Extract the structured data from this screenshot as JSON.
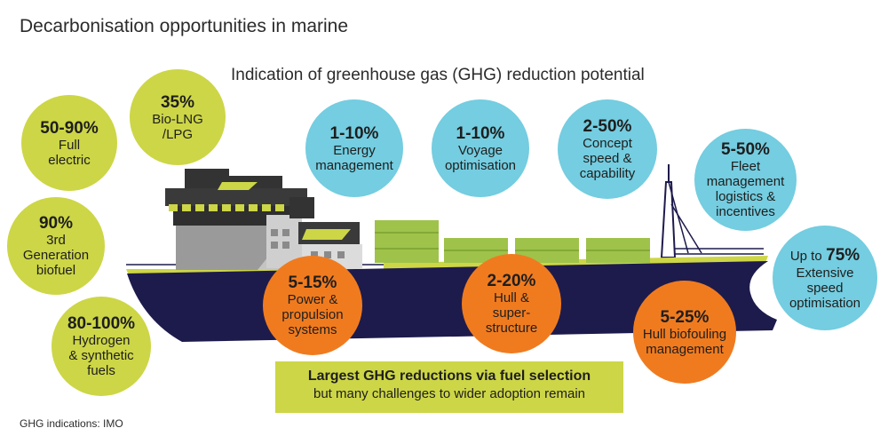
{
  "title": "Decarbonisation opportunities in marine",
  "subtitle": "Indication of greenhouse gas (GHG) reduction potential",
  "footnote": "GHG indications: IMO",
  "colors": {
    "green": "#cdd646",
    "blue": "#74cde0",
    "orange": "#f07b1f",
    "hull": "#1d1b4c"
  },
  "fuel": [
    {
      "pct": "35%",
      "label": [
        "Bio-LNG",
        "/LPG"
      ]
    },
    {
      "pct": "50-90%",
      "label": [
        "Full",
        "electric"
      ]
    },
    {
      "pct": "90%",
      "label": [
        "3rd",
        "Generation",
        "biofuel"
      ]
    },
    {
      "pct": "80-100%",
      "label": [
        "Hydrogen",
        "& synthetic",
        "fuels"
      ]
    }
  ],
  "operations": [
    {
      "pct": "1-10%",
      "label": [
        "Energy",
        "management"
      ]
    },
    {
      "pct": "1-10%",
      "label": [
        "Voyage",
        "optimisation"
      ]
    },
    {
      "pct": "2-50%",
      "label": [
        "Concept",
        "speed &",
        "capability"
      ]
    },
    {
      "pct": "5-50%",
      "label": [
        "Fleet",
        "management",
        "logistics &",
        "incentives"
      ]
    },
    {
      "prefix": "Up to",
      "pct": "75%",
      "label": [
        "Extensive",
        "speed",
        "optimisation"
      ]
    }
  ],
  "ship_tech": [
    {
      "pct": "5-15%",
      "label": [
        "Power &",
        "propulsion",
        "systems"
      ]
    },
    {
      "pct": "2-20%",
      "label": [
        "Hull &",
        "super-",
        "structure"
      ]
    },
    {
      "pct": "5-25%",
      "label": [
        "Hull biofouling",
        "management"
      ]
    }
  ],
  "callout": {
    "main": "Largest GHG reductions via fuel selection",
    "sub": "but many challenges to wider adoption remain"
  }
}
